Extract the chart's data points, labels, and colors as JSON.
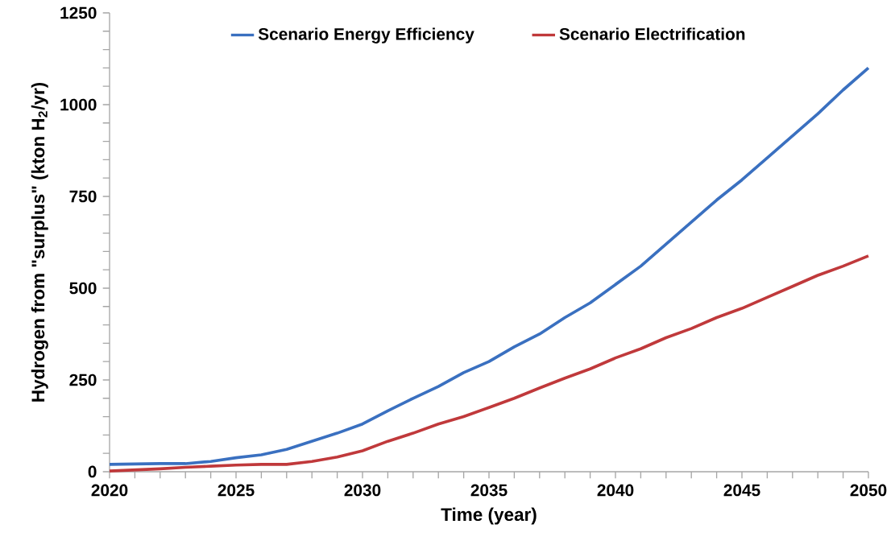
{
  "chart_data": {
    "type": "line",
    "xlabel": "Time (year)",
    "ylabel": "Hydrogen from \"surplus\" (kton H$_{2}$/yr)",
    "x": [
      2020,
      2021,
      2022,
      2023,
      2024,
      2025,
      2026,
      2027,
      2028,
      2029,
      2030,
      2031,
      2032,
      2033,
      2034,
      2035,
      2036,
      2037,
      2038,
      2039,
      2040,
      2041,
      2042,
      2043,
      2044,
      2045,
      2046,
      2047,
      2048,
      2049,
      2050
    ],
    "series": [
      {
        "name": "Scenario Energy Efficiency",
        "color": "#3a70c0",
        "values": [
          20,
          21,
          22,
          22,
          28,
          38,
          46,
          61,
          83,
          105,
          130,
          166,
          200,
          232,
          270,
          300,
          340,
          375,
          420,
          460,
          510,
          560,
          620,
          680,
          740,
          795,
          855,
          915,
          975,
          1040,
          1100
        ]
      },
      {
        "name": "Scenario Electrification",
        "color": "#c0393b",
        "values": [
          2,
          5,
          8,
          12,
          15,
          18,
          20,
          20,
          28,
          40,
          57,
          83,
          105,
          130,
          150,
          175,
          200,
          228,
          255,
          280,
          310,
          335,
          365,
          390,
          420,
          445,
          475,
          505,
          535,
          560,
          588
        ]
      }
    ],
    "xlim": [
      2020,
      2050
    ],
    "ylim": [
      0,
      1250
    ],
    "xticks": [
      2020,
      {
        "value": 2021,
        "label": null
      },
      {
        "value": 2022,
        "label": null
      },
      {
        "value": 2023,
        "label": null
      },
      {
        "value": 2024,
        "label": null
      },
      2025,
      {
        "value": 2026,
        "label": null
      },
      {
        "value": 2027,
        "label": null
      },
      {
        "value": 2028,
        "label": null
      },
      {
        "value": 2029,
        "label": null
      },
      2030,
      {
        "value": 2031,
        "label": null
      },
      {
        "value": 2032,
        "label": null
      },
      {
        "value": 2033,
        "label": null
      },
      {
        "value": 2034,
        "label": null
      },
      2035,
      {
        "value": 2036,
        "label": null
      },
      {
        "value": 2037,
        "label": null
      },
      {
        "value": 2038,
        "label": null
      },
      {
        "value": 2039,
        "label": null
      },
      2040,
      {
        "value": 2041,
        "label": null
      },
      {
        "value": 2042,
        "label": null
      },
      {
        "value": 2043,
        "label": null
      },
      {
        "value": 2044,
        "label": null
      },
      2045,
      {
        "value": 2046,
        "label": null
      },
      {
        "value": 2047,
        "label": null
      },
      {
        "value": 2048,
        "label": null
      },
      {
        "value": 2049,
        "label": null
      },
      2050
    ],
    "yticks": [
      0,
      {
        "value": 50,
        "label": null
      },
      {
        "value": 100,
        "label": null
      },
      {
        "value": 150,
        "label": null
      },
      {
        "value": 200,
        "label": null
      },
      250,
      {
        "value": 300,
        "label": null
      },
      {
        "value": 350,
        "label": null
      },
      {
        "value": 400,
        "label": null
      },
      {
        "value": 450,
        "label": null
      },
      500,
      {
        "value": 550,
        "label": null
      },
      {
        "value": 600,
        "label": null
      },
      {
        "value": 650,
        "label": null
      },
      {
        "value": 700,
        "label": null
      },
      750,
      {
        "value": 800,
        "label": null
      },
      {
        "value": 850,
        "label": null
      },
      {
        "value": 900,
        "label": null
      },
      {
        "value": 950,
        "label": null
      },
      1000,
      {
        "value": 1050,
        "label": null
      },
      {
        "value": 1100,
        "label": null
      },
      {
        "value": 1150,
        "label": null
      },
      {
        "value": 1200,
        "label": null
      },
      1250
    ],
    "legend": "top",
    "grid": false,
    "marker": "none",
    "line_style": "solid"
  }
}
